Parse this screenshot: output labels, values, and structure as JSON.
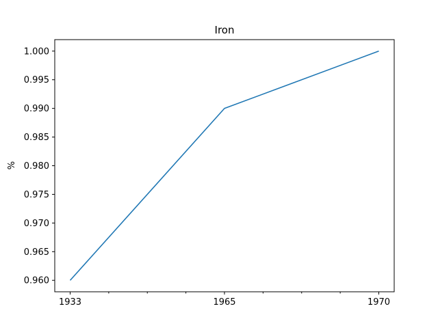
{
  "chart_data": {
    "type": "line",
    "title": "Iron",
    "xlabel": "",
    "ylabel": "%",
    "x": [
      1933,
      1965,
      1970
    ],
    "x_tick_labels": [
      "1933",
      "1965",
      "1970"
    ],
    "y_ticks": [
      0.96,
      0.965,
      0.97,
      0.975,
      0.98,
      0.985,
      0.99,
      0.995,
      1.0
    ],
    "y_tick_labels": [
      "0.960",
      "0.965",
      "0.970",
      "0.975",
      "0.980",
      "0.985",
      "0.990",
      "0.995",
      "1.000"
    ],
    "ylim": [
      0.958,
      1.002
    ],
    "series": [
      {
        "values": [
          0.96,
          0.99,
          1.0
        ],
        "color": "#1f77b4"
      }
    ],
    "grid": false,
    "legend": "none"
  }
}
